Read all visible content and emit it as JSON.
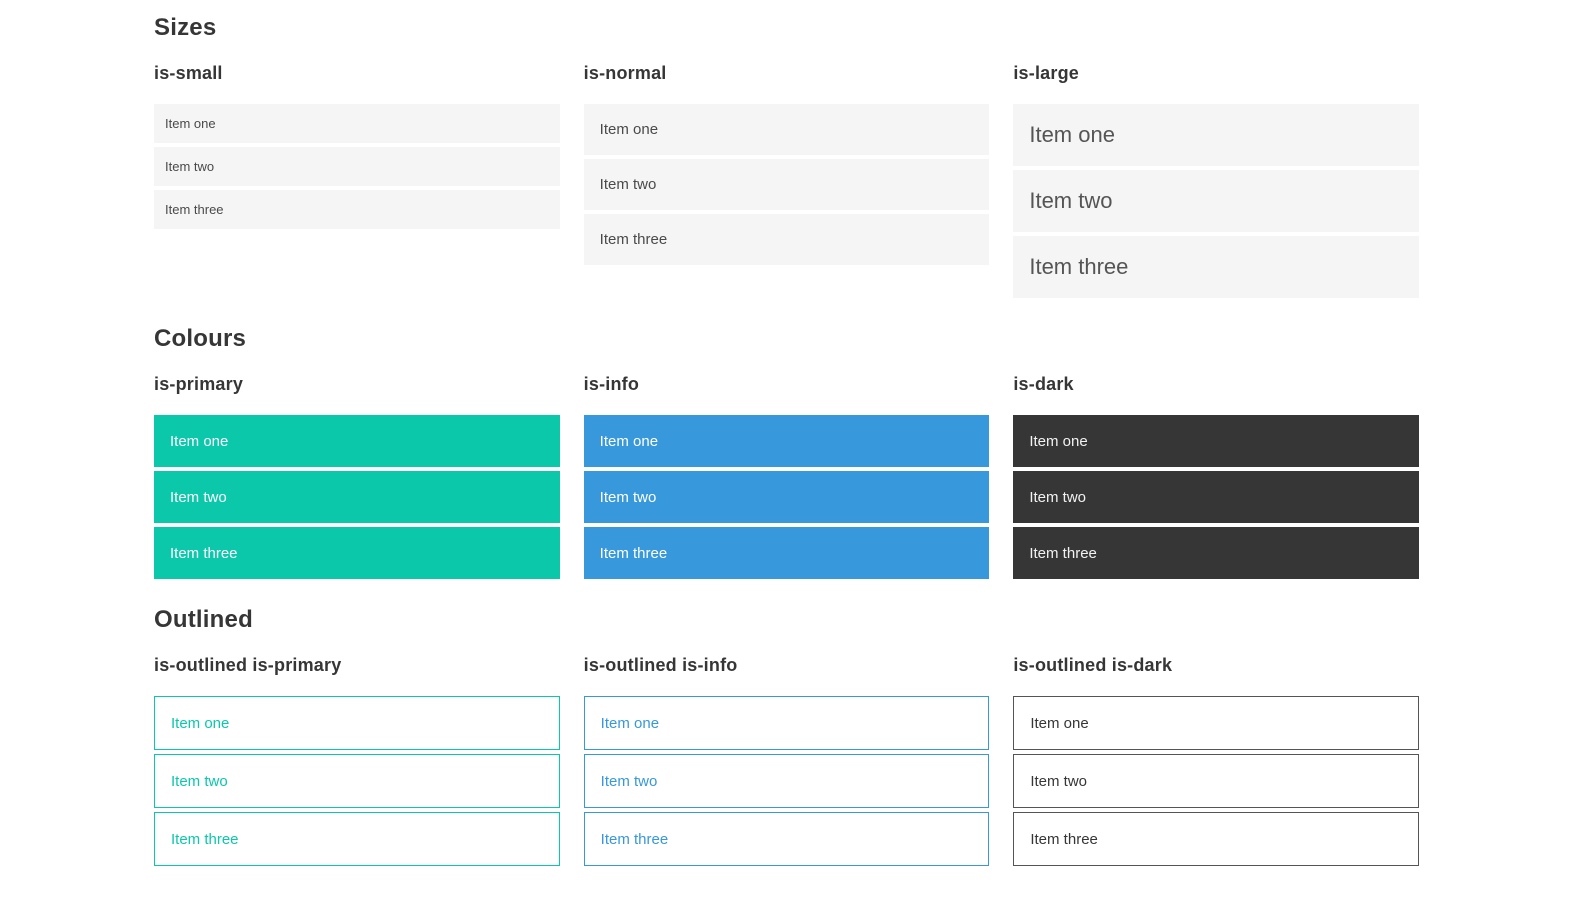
{
  "page": {
    "background": "#ffffff"
  },
  "colors": {
    "primary": "#0bc8ab",
    "info": "#3798db",
    "dark": "#363636",
    "dark-border": "#555555",
    "item-bg": "#f5f5f5",
    "item-text": "#4a4a4a",
    "heading": "#363636"
  },
  "sections": [
    {
      "title": "Sizes",
      "groups": [
        {
          "label": "is-small",
          "variant": "size-small",
          "items": [
            "Item one",
            "Item two",
            "Item three"
          ]
        },
        {
          "label": "is-normal",
          "variant": "size-normal",
          "items": [
            "Item one",
            "Item two",
            "Item three"
          ]
        },
        {
          "label": "is-large",
          "variant": "size-large",
          "items": [
            "Item one",
            "Item two",
            "Item three"
          ]
        }
      ]
    },
    {
      "title": "Colours",
      "groups": [
        {
          "label": "is-primary",
          "variant": "color-primary",
          "items": [
            "Item one",
            "Item two",
            "Item three"
          ]
        },
        {
          "label": "is-info",
          "variant": "color-info",
          "items": [
            "Item one",
            "Item two",
            "Item three"
          ]
        },
        {
          "label": "is-dark",
          "variant": "color-dark",
          "items": [
            "Item one",
            "Item two",
            "Item three"
          ]
        }
      ]
    },
    {
      "title": "Outlined",
      "groups": [
        {
          "label": "is-outlined is-primary",
          "variant": "outlined-primary",
          "items": [
            "Item one",
            "Item two",
            "Item three"
          ]
        },
        {
          "label": "is-outlined is-info",
          "variant": "outlined-info",
          "items": [
            "Item one",
            "Item two",
            "Item three"
          ]
        },
        {
          "label": "is-outlined is-dark",
          "variant": "outlined-dark",
          "items": [
            "Item one",
            "Item two",
            "Item three"
          ]
        }
      ]
    }
  ]
}
